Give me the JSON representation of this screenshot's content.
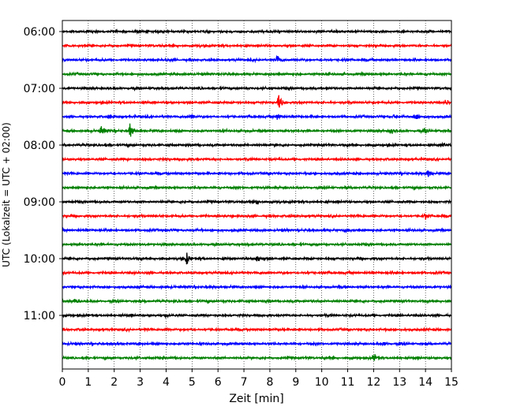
{
  "chart_data": {
    "type": "line",
    "title": "",
    "xlabel": "Zeit  [min]",
    "ylabel": "UTC (Lokalzeit = UTC + 02:00)",
    "xlim": [
      0,
      15
    ],
    "x_ticks": [
      0,
      1,
      2,
      3,
      4,
      5,
      6,
      7,
      8,
      9,
      10,
      11,
      12,
      13,
      14,
      15
    ],
    "x_tick_labels": [
      "0",
      "1",
      "2",
      "3",
      "4",
      "5",
      "6",
      "7",
      "8",
      "9",
      "10",
      "11",
      "12",
      "13",
      "14",
      "15"
    ],
    "grid": "vertical-dotted",
    "y_ticks": [
      {
        "label": "06:00",
        "trace_index": 0
      },
      {
        "label": "07:00",
        "trace_index": 4
      },
      {
        "label": "08:00",
        "trace_index": 8
      },
      {
        "label": "09:00",
        "trace_index": 12
      },
      {
        "label": "10:00",
        "trace_index": 16
      },
      {
        "label": "11:00",
        "trace_index": 20
      }
    ],
    "trace_interval_min": 15,
    "trace_colors": [
      "#000000",
      "#ff0000",
      "#0000ff",
      "#008000"
    ],
    "traces": [
      {
        "start": "06:00",
        "events": []
      },
      {
        "start": "06:15",
        "events": []
      },
      {
        "start": "06:30",
        "events": [
          {
            "t": 8.3,
            "amp": 0.5
          }
        ]
      },
      {
        "start": "06:45",
        "events": []
      },
      {
        "start": "07:00",
        "events": []
      },
      {
        "start": "07:15",
        "events": [
          {
            "t": 8.35,
            "amp": 1.0
          },
          {
            "t": 14.8,
            "amp": 0.4
          }
        ]
      },
      {
        "start": "07:30",
        "events": [
          {
            "t": 1.8,
            "amp": 0.3
          },
          {
            "t": 5.0,
            "amp": 0.45
          },
          {
            "t": 8.3,
            "amp": 0.45
          },
          {
            "t": 12.8,
            "amp": 0.4
          },
          {
            "t": 13.6,
            "amp": 0.8
          }
        ]
      },
      {
        "start": "07:45",
        "events": [
          {
            "t": 1.5,
            "amp": 0.6
          },
          {
            "t": 2.6,
            "amp": 1.0
          },
          {
            "t": 12.7,
            "amp": 0.4
          },
          {
            "t": 14.0,
            "amp": 0.4
          }
        ]
      },
      {
        "start": "08:00",
        "events": [
          {
            "t": 14.7,
            "amp": 0.3
          }
        ]
      },
      {
        "start": "08:15",
        "events": []
      },
      {
        "start": "08:30",
        "events": [
          {
            "t": 14.1,
            "amp": 0.5
          }
        ]
      },
      {
        "start": "08:45",
        "events": []
      },
      {
        "start": "09:00",
        "events": [
          {
            "t": 7.5,
            "amp": 0.35
          }
        ]
      },
      {
        "start": "09:15",
        "events": [
          {
            "t": 14.0,
            "amp": 0.3
          }
        ]
      },
      {
        "start": "09:30",
        "events": [
          {
            "t": 10.9,
            "amp": 0.3
          }
        ]
      },
      {
        "start": "09:45",
        "events": []
      },
      {
        "start": "10:00",
        "events": [
          {
            "t": 4.8,
            "amp": 0.8
          },
          {
            "t": 7.5,
            "amp": 0.7
          }
        ]
      },
      {
        "start": "10:15",
        "events": []
      },
      {
        "start": "10:30",
        "events": []
      },
      {
        "start": "10:45",
        "events": [
          {
            "t": 0.5,
            "amp": 0.35
          }
        ]
      },
      {
        "start": "11:00",
        "events": [
          {
            "t": 4.0,
            "amp": 0.3
          }
        ]
      },
      {
        "start": "11:15",
        "events": []
      },
      {
        "start": "11:30",
        "events": [
          {
            "t": 12.4,
            "amp": 0.25
          }
        ]
      },
      {
        "start": "11:45",
        "events": [
          {
            "t": 12.0,
            "amp": 0.5
          }
        ]
      }
    ]
  }
}
